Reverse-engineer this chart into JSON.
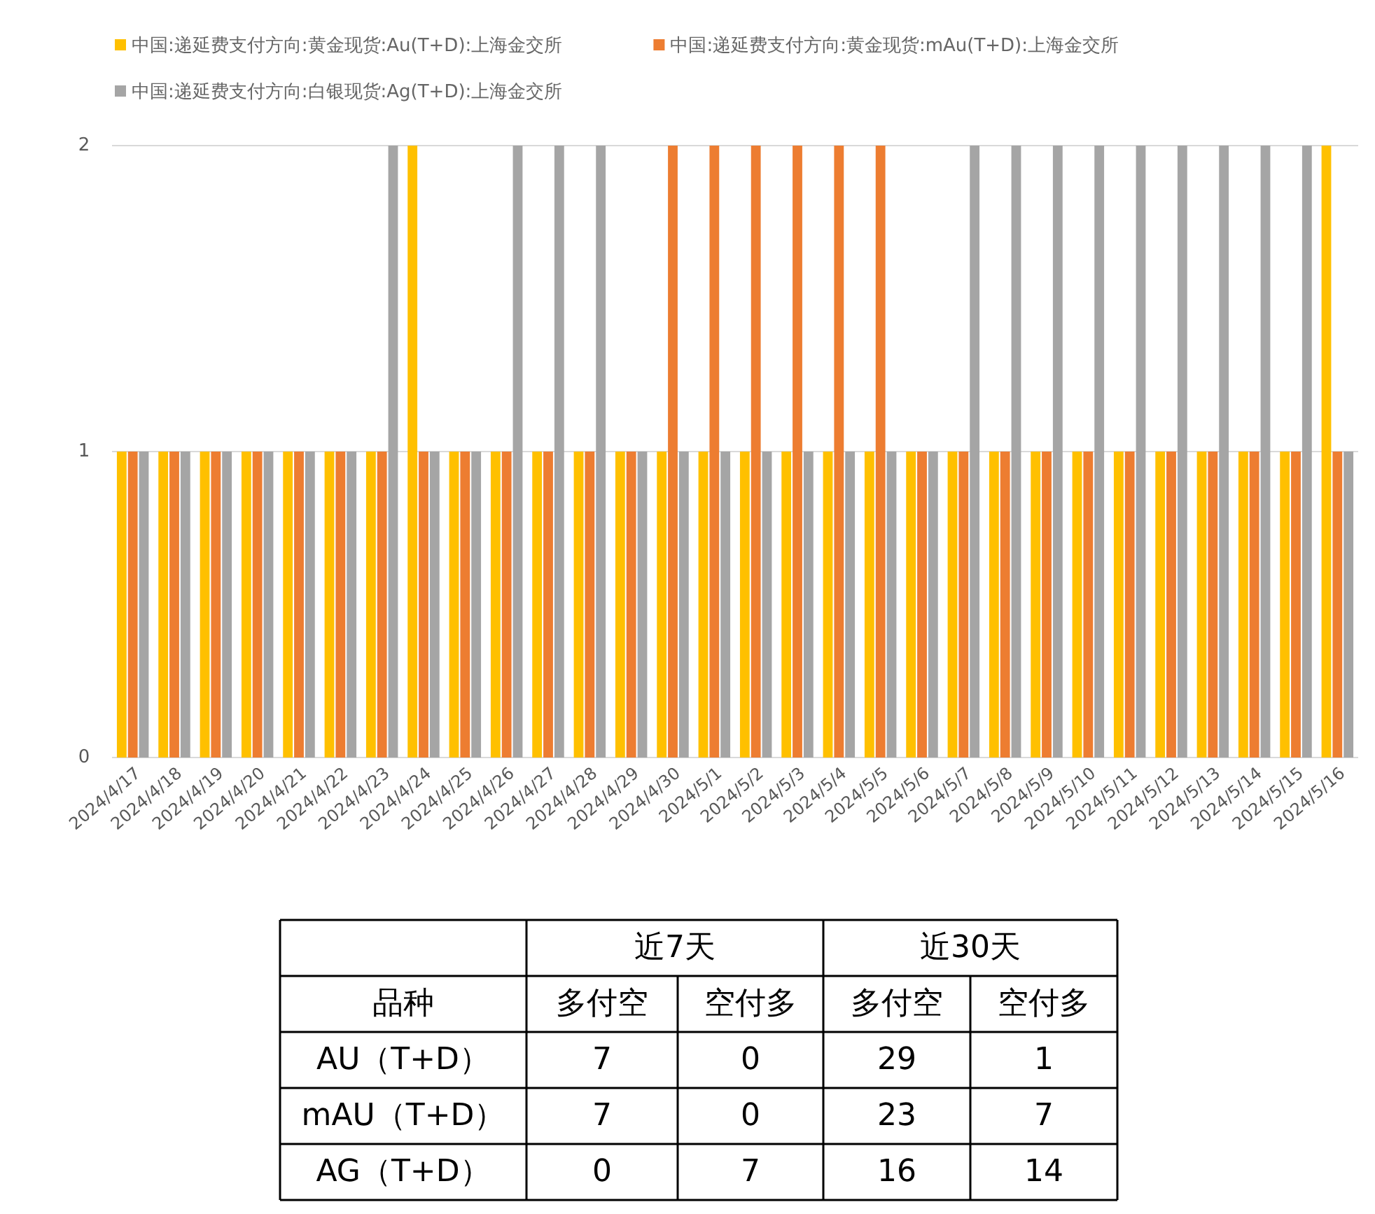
{
  "chart_data": [
    {
      "type": "bar",
      "categories": [
        "2024/4/17",
        "2024/4/18",
        "2024/4/19",
        "2024/4/20",
        "2024/4/21",
        "2024/4/22",
        "2024/4/23",
        "2024/4/24",
        "2024/4/25",
        "2024/4/26",
        "2024/4/27",
        "2024/4/28",
        "2024/4/29",
        "2024/4/30",
        "2024/5/1",
        "2024/5/2",
        "2024/5/3",
        "2024/5/4",
        "2024/5/5",
        "2024/5/6",
        "2024/5/7",
        "2024/5/8",
        "2024/5/9",
        "2024/5/10",
        "2024/5/11",
        "2024/5/12",
        "2024/5/13",
        "2024/5/14",
        "2024/5/15",
        "2024/5/16"
      ],
      "series": [
        {
          "name": "中国:递延费支付方向:黄金现货:Au(T+D):上海金交所",
          "color": "#ffc000",
          "values": [
            1,
            1,
            1,
            1,
            1,
            1,
            1,
            2,
            1,
            1,
            1,
            1,
            1,
            1,
            1,
            1,
            1,
            1,
            1,
            1,
            1,
            1,
            1,
            1,
            1,
            1,
            1,
            1,
            1,
            2
          ]
        },
        {
          "name": "中国:递延费支付方向:黄金现货:mAu(T+D):上海金交所",
          "color": "#ed7d31",
          "values": [
            1,
            1,
            1,
            1,
            1,
            1,
            1,
            1,
            1,
            1,
            1,
            1,
            1,
            2,
            2,
            2,
            2,
            2,
            2,
            1,
            1,
            1,
            1,
            1,
            1,
            1,
            1,
            1,
            1,
            1
          ]
        },
        {
          "name": "中国:递延费支付方向:白银现货:Ag(T+D):上海金交所",
          "color": "#a5a5a5",
          "values": [
            1,
            1,
            1,
            1,
            1,
            1,
            2,
            1,
            1,
            2,
            2,
            2,
            1,
            1,
            1,
            1,
            1,
            1,
            1,
            1,
            2,
            2,
            2,
            2,
            2,
            2,
            2,
            2,
            2,
            1
          ]
        }
      ],
      "ylim": [
        0,
        2
      ],
      "yticks": [
        0,
        1,
        2
      ],
      "grid": "y",
      "legend": "top left"
    },
    {
      "type": "heatmap",
      "data_labels": true,
      "categories": [
        "多付空",
        "空付多",
        "多付空",
        "空付多"
      ],
      "y_categories": [
        "AU（T+D）",
        "mAU（T+D）",
        "AG（T+D）"
      ],
      "cells": [
        [
          7,
          0,
          29,
          1
        ],
        [
          7,
          0,
          23,
          7
        ],
        [
          0,
          7,
          16,
          14
        ]
      ],
      "annotations": [
        "近7天",
        "近30天",
        "品种"
      ]
    }
  ]
}
